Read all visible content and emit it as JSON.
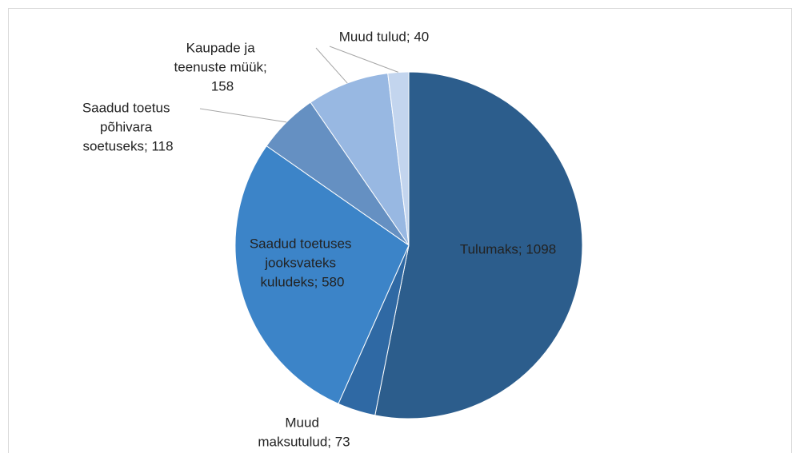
{
  "chart_data": {
    "type": "pie",
    "categories": [
      "Tulumaks",
      "Muud maksutulud",
      "Saadud toetuses jooksvateks kuludeks",
      "Saadud toetus põhivara soetuseks",
      "Kaupade ja teenuste müük",
      "Muud tulud"
    ],
    "values": [
      1098,
      73,
      580,
      118,
      158,
      40
    ],
    "value_labels": [
      "Tulumaks; 1098",
      "Muud maksutulud; 73",
      "Saadud toetuses jooksvateks kuludeks; 580",
      "Saadud toetus põhivara soetuseks; 118",
      "Kaupade ja teenuste müük; 158",
      "Muud tulud; 40"
    ],
    "colors": [
      "#2c5d8c",
      "#2f69a4",
      "#3c84c8",
      "#6590c2",
      "#98b8e2",
      "#c3d5ee"
    ]
  }
}
